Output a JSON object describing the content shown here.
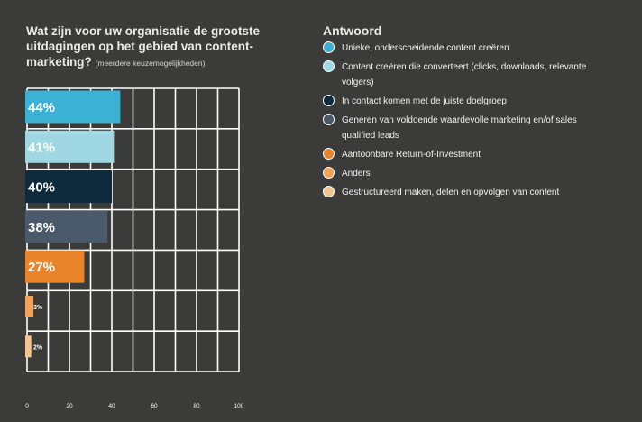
{
  "chart_data": {
    "type": "bar",
    "orientation": "horizontal",
    "title": "Wat zijn voor uw organisatie de grootste uitdagingen op het gebied van content-marketing?",
    "subtitle": "(meerdere keuzemogelijkheden)",
    "legend_title": "Antwoord",
    "categories": [
      "Unieke, onderscheidende content creëren",
      "Content creëren die converteert (clicks, downloads, relevante volgers)",
      "In contact komen met de juiste doelgroep",
      "Generen van voldoende waardevolle marketing en/of sales qualified leads",
      "Aantoonbare Return-of-Investment",
      "Anders",
      "Gestructureerd maken, delen en opvolgen van content"
    ],
    "values": [
      44,
      41,
      40,
      38,
      27,
      3,
      2
    ],
    "value_labels": [
      "44%",
      "41%",
      "40%",
      "38%",
      "27%",
      "3%",
      "2%"
    ],
    "colors": [
      "#3bb1d4",
      "#9fd7e2",
      "#0e2a3d",
      "#4b5a6b",
      "#e9842a",
      "#f0a35a",
      "#f4c48e"
    ],
    "xlim": [
      0,
      100
    ],
    "xticks": [
      "0",
      "20",
      "40",
      "60",
      "80",
      "100"
    ],
    "grid": true
  }
}
